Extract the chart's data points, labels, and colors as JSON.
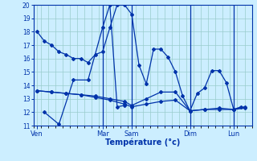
{
  "xlabel": "Température (°c)",
  "background_color": "#cceeff",
  "grid_color": "#99cccc",
  "line_color": "#0033aa",
  "ylim": [
    11,
    20
  ],
  "yticks": [
    11,
    12,
    13,
    14,
    15,
    16,
    17,
    18,
    19,
    20
  ],
  "xlim": [
    0,
    30
  ],
  "day_labels": [
    "Ven",
    "Mar",
    "Sam",
    "Dim",
    "Lun"
  ],
  "day_positions": [
    0.5,
    9.5,
    13.5,
    21.5,
    27.5
  ],
  "day_vlines": [
    9.5,
    13.5,
    21.5,
    27.5
  ],
  "series": [
    {
      "x": [
        0.5,
        1.5,
        2.5,
        3.5,
        4.5,
        5.5,
        6.5,
        7.5,
        8.5,
        9.5,
        10.5,
        11.5,
        12.5,
        13.5,
        14.5,
        15.5,
        16.5,
        17.5,
        18.5,
        19.5,
        20.5,
        21.5,
        22.5,
        23.5,
        24.5,
        25.5,
        26.5,
        27.5,
        28.5
      ],
      "y": [
        18.0,
        17.3,
        17.0,
        16.5,
        16.3,
        16.0,
        16.0,
        15.7,
        16.3,
        16.5,
        18.3,
        20.0,
        20.0,
        19.3,
        15.5,
        14.1,
        16.7,
        16.7,
        16.1,
        15.0,
        13.2,
        12.1,
        13.4,
        13.8,
        15.1,
        15.1,
        14.2,
        12.2,
        12.4
      ]
    },
    {
      "x": [
        0.5,
        2.5,
        4.5,
        6.5,
        8.5,
        10.5,
        12.5,
        13.5,
        15.5,
        17.5,
        19.5,
        21.5,
        23.5,
        25.5,
        27.5,
        29.0
      ],
      "y": [
        13.6,
        13.5,
        13.4,
        13.3,
        13.2,
        13.0,
        12.8,
        12.5,
        13.0,
        13.5,
        13.5,
        12.1,
        12.2,
        12.3,
        12.2,
        12.4
      ]
    },
    {
      "x": [
        0.5,
        2.5,
        4.5,
        6.5,
        8.5,
        10.5,
        12.5,
        13.5,
        15.5,
        17.5,
        19.5,
        21.5,
        23.5,
        25.5,
        27.5,
        29.0
      ],
      "y": [
        13.6,
        13.5,
        13.4,
        13.3,
        13.1,
        12.9,
        12.6,
        12.4,
        12.6,
        12.8,
        12.9,
        12.1,
        12.2,
        12.2,
        12.2,
        12.3
      ]
    },
    {
      "x": [
        1.5,
        3.5,
        5.5,
        7.5,
        9.5,
        10.5,
        11.5,
        12.5
      ],
      "y": [
        12.0,
        11.1,
        14.4,
        14.4,
        18.3,
        20.0,
        12.4,
        12.5
      ]
    }
  ]
}
